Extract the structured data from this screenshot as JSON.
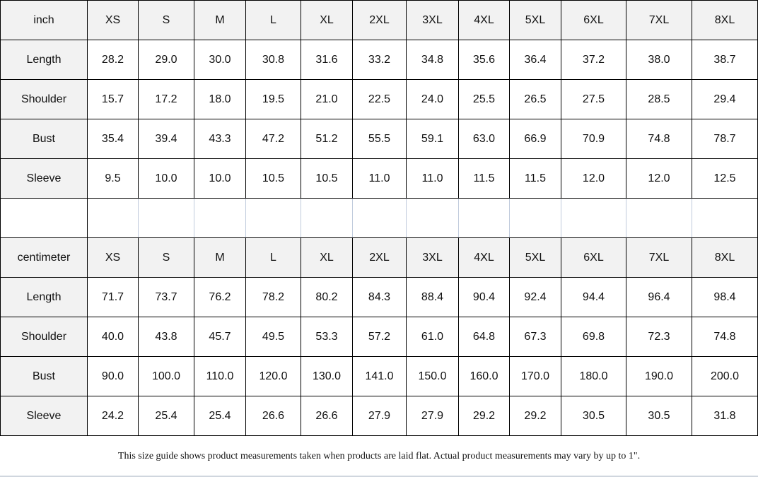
{
  "sizes": [
    "XS",
    "S",
    "M",
    "L",
    "XL",
    "2XL",
    "3XL",
    "4XL",
    "5XL",
    "6XL",
    "7XL",
    "8XL"
  ],
  "tables": [
    {
      "unit": "inch",
      "rows": [
        {
          "label": "Length",
          "values": [
            "28.2",
            "29.0",
            "30.0",
            "30.8",
            "31.6",
            "33.2",
            "34.8",
            "35.6",
            "36.4",
            "37.2",
            "38.0",
            "38.7"
          ]
        },
        {
          "label": "Shoulder",
          "values": [
            "15.7",
            "17.2",
            "18.0",
            "19.5",
            "21.0",
            "22.5",
            "24.0",
            "25.5",
            "26.5",
            "27.5",
            "28.5",
            "29.4"
          ]
        },
        {
          "label": "Bust",
          "values": [
            "35.4",
            "39.4",
            "43.3",
            "47.2",
            "51.2",
            "55.5",
            "59.1",
            "63.0",
            "66.9",
            "70.9",
            "74.8",
            "78.7"
          ]
        },
        {
          "label": "Sleeve",
          "values": [
            "9.5",
            "10.0",
            "10.0",
            "10.5",
            "10.5",
            "11.0",
            "11.0",
            "11.5",
            "11.5",
            "12.0",
            "12.0",
            "12.5"
          ]
        }
      ]
    },
    {
      "unit": "centimeter",
      "rows": [
        {
          "label": "Length",
          "values": [
            "71.7",
            "73.7",
            "76.2",
            "78.2",
            "80.2",
            "84.3",
            "88.4",
            "90.4",
            "92.4",
            "94.4",
            "96.4",
            "98.4"
          ]
        },
        {
          "label": "Shoulder",
          "values": [
            "40.0",
            "43.8",
            "45.7",
            "49.5",
            "53.3",
            "57.2",
            "61.0",
            "64.8",
            "67.3",
            "69.8",
            "72.3",
            "74.8"
          ]
        },
        {
          "label": "Bust",
          "values": [
            "90.0",
            "100.0",
            "110.0",
            "120.0",
            "130.0",
            "141.0",
            "150.0",
            "160.0",
            "170.0",
            "180.0",
            "190.0",
            "200.0"
          ]
        },
        {
          "label": "Sleeve",
          "values": [
            "24.2",
            "25.4",
            "25.4",
            "26.6",
            "26.6",
            "27.9",
            "27.9",
            "29.2",
            "29.2",
            "30.5",
            "30.5",
            "31.8"
          ]
        }
      ]
    }
  ],
  "note": "This size guide shows product measurements taken when products are laid flat. Actual product measurements may vary by up to 1\"."
}
